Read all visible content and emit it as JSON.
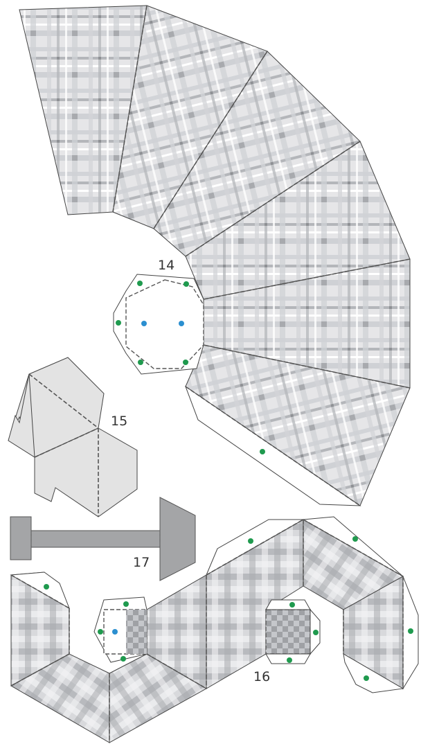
{
  "labels": {
    "piece_14": "14",
    "piece_15": "15",
    "piece_16": "16",
    "piece_17": "17"
  },
  "colors": {
    "paper_light": "#e6e6e8",
    "stripe_light": "#d2d4d8",
    "stripe_mid": "#b4b6ba",
    "stripe_dark": "#8e9094",
    "solid_grey": "#a4a5a7",
    "piece15_fill": "#e3e3e3",
    "outline": "#444444",
    "fold_line": "#555555",
    "glue_dot": "#1f9a4e",
    "align_dot": "#2b8fd0"
  },
  "legend": {
    "green_dot": "glue-tab",
    "blue_dot": "alignment-mark",
    "dashed_line": "fold-line"
  }
}
